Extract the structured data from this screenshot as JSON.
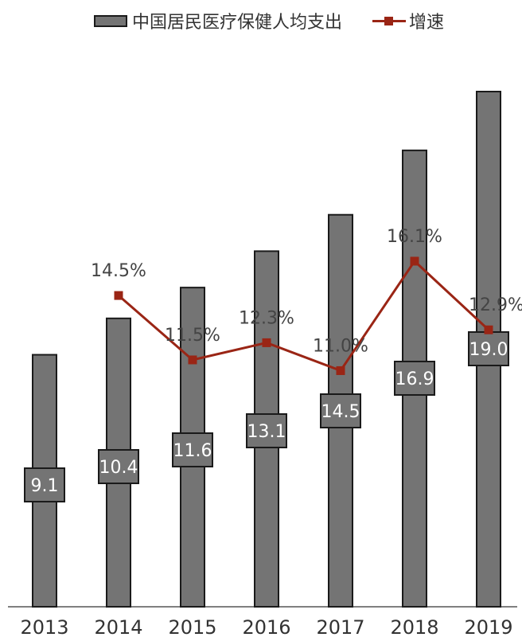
{
  "legend": {
    "bar_label": "中国居民医疗保健人均支出",
    "line_label": "增速"
  },
  "chart_data": {
    "type": "bar",
    "categories": [
      "2013",
      "2014",
      "2015",
      "2016",
      "2017",
      "2018",
      "2019"
    ],
    "series": [
      {
        "name": "中国居民医疗保健人均支出",
        "type": "bar",
        "values": [
          9.1,
          10.4,
          11.6,
          13.1,
          14.5,
          16.9,
          19.0
        ],
        "labels": [
          "9.1",
          "10.4",
          "11.6",
          "13.1",
          "14.5",
          "16.9",
          "19.0"
        ],
        "bar_heights_est": [
          9.0,
          10.3,
          11.4,
          12.7,
          14.0,
          16.3,
          18.4
        ],
        "color": "#747474"
      },
      {
        "name": "增速",
        "type": "line",
        "values": [
          null,
          14.5,
          11.5,
          12.3,
          11.0,
          16.1,
          12.9
        ],
        "labels": [
          "",
          "14.5%",
          "11.5%",
          "12.3%",
          "11.0%",
          "16.1%",
          "12.9%"
        ],
        "color": "#9a2515"
      }
    ],
    "bar_axis_range": [
      0,
      18.4
    ],
    "line_axis_range": [
      0,
      24
    ],
    "grid": false,
    "legend_position": "top"
  }
}
